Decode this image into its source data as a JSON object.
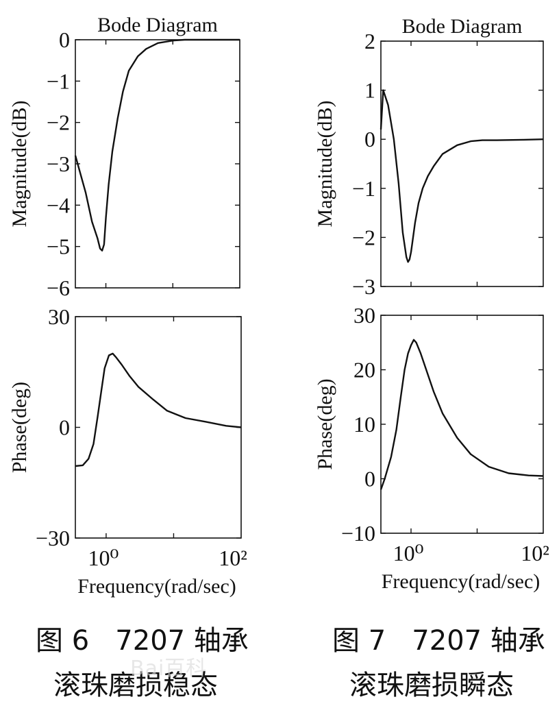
{
  "chart_data": [
    {
      "type": "line",
      "figure": "left",
      "title": "Bode Diagram",
      "ylabel": "Magnitude(dB)",
      "xscale": "log",
      "xlim": [
        0.35,
        100
      ],
      "ylim": [
        -6,
        0
      ],
      "yticks": [
        0,
        -1,
        -2,
        -3,
        -4,
        -5,
        -6
      ],
      "series": [
        {
          "x": [
            0.35,
            0.5,
            0.62,
            0.75,
            0.82,
            0.88,
            0.94,
            1.0,
            1.1,
            1.25,
            1.5,
            1.8,
            2.2,
            3.0,
            4.0,
            6.0,
            10,
            15,
            20,
            30,
            100
          ],
          "y": [
            -2.8,
            -3.7,
            -4.4,
            -4.8,
            -5.05,
            -5.1,
            -4.95,
            -4.3,
            -3.5,
            -2.7,
            -1.9,
            -1.25,
            -0.75,
            -0.4,
            -0.22,
            -0.08,
            -0.02,
            0,
            0,
            0,
            0
          ]
        }
      ]
    },
    {
      "type": "line",
      "figure": "left",
      "xlabel": "Frequency(rad/sec)",
      "ylabel": "Phase(deg)",
      "xscale": "log",
      "xlim": [
        0.35,
        100
      ],
      "ylim": [
        -30,
        30
      ],
      "yticks": [
        30,
        0,
        -30
      ],
      "xticks": [
        "10⁰",
        "10²"
      ],
      "series": [
        {
          "x": [
            0.35,
            0.45,
            0.55,
            0.65,
            0.75,
            0.85,
            0.95,
            1.1,
            1.25,
            1.4,
            1.7,
            2.2,
            3.0,
            5.0,
            8.0,
            15,
            30,
            60,
            100
          ],
          "y": [
            -10.5,
            -10.3,
            -8.5,
            -4.5,
            3,
            10,
            16,
            19.5,
            20,
            19,
            17,
            14,
            11,
            7.5,
            4.5,
            2.5,
            1.5,
            0.4,
            0
          ]
        }
      ]
    },
    {
      "type": "line",
      "figure": "right",
      "title": "Bode Diagram",
      "ylabel": "Magnitude(dB)",
      "xscale": "log",
      "xlim": [
        0.35,
        100
      ],
      "ylim": [
        -3,
        2
      ],
      "yticks": [
        2,
        1,
        0,
        -1,
        -2,
        -3
      ],
      "series": [
        {
          "x": [
            0.35,
            0.38,
            0.45,
            0.55,
            0.65,
            0.75,
            0.85,
            0.9,
            0.95,
            1.0,
            1.05,
            1.15,
            1.3,
            1.5,
            1.8,
            2.2,
            3.0,
            5.0,
            8.0,
            12,
            20,
            50,
            100
          ],
          "y": [
            0.2,
            1.0,
            0.7,
            0.0,
            -0.9,
            -1.9,
            -2.4,
            -2.5,
            -2.45,
            -2.3,
            -2.1,
            -1.7,
            -1.3,
            -1.0,
            -0.75,
            -0.55,
            -0.3,
            -0.12,
            -0.04,
            -0.02,
            -0.02,
            -0.01,
            0
          ]
        }
      ]
    },
    {
      "type": "line",
      "figure": "right",
      "xlabel": "Frequency(rad/sec)",
      "ylabel": "Phase(deg)",
      "xscale": "log",
      "xlim": [
        0.35,
        100
      ],
      "ylim": [
        -10,
        30
      ],
      "yticks": [
        30,
        20,
        10,
        0,
        -10
      ],
      "xticks": [
        "10⁰",
        "10²"
      ],
      "series": [
        {
          "x": [
            0.35,
            0.4,
            0.5,
            0.6,
            0.7,
            0.8,
            0.9,
            1.0,
            1.1,
            1.2,
            1.4,
            1.7,
            2.2,
            3.0,
            5.0,
            8.0,
            15,
            30,
            60,
            100
          ],
          "y": [
            -2,
            0,
            4,
            9,
            15,
            20,
            23,
            24.5,
            25.5,
            25,
            23,
            20,
            16,
            12,
            7.5,
            4.5,
            2.2,
            1,
            0.6,
            0.5
          ]
        }
      ]
    }
  ],
  "captions": {
    "left_line1": "图 6   7207 轴承",
    "left_line2": "滚珠磨损稳态",
    "right_line1": "图 7   7207 轴承",
    "right_line2": "滚珠磨损瞬态"
  },
  "watermark": "Bai百科"
}
